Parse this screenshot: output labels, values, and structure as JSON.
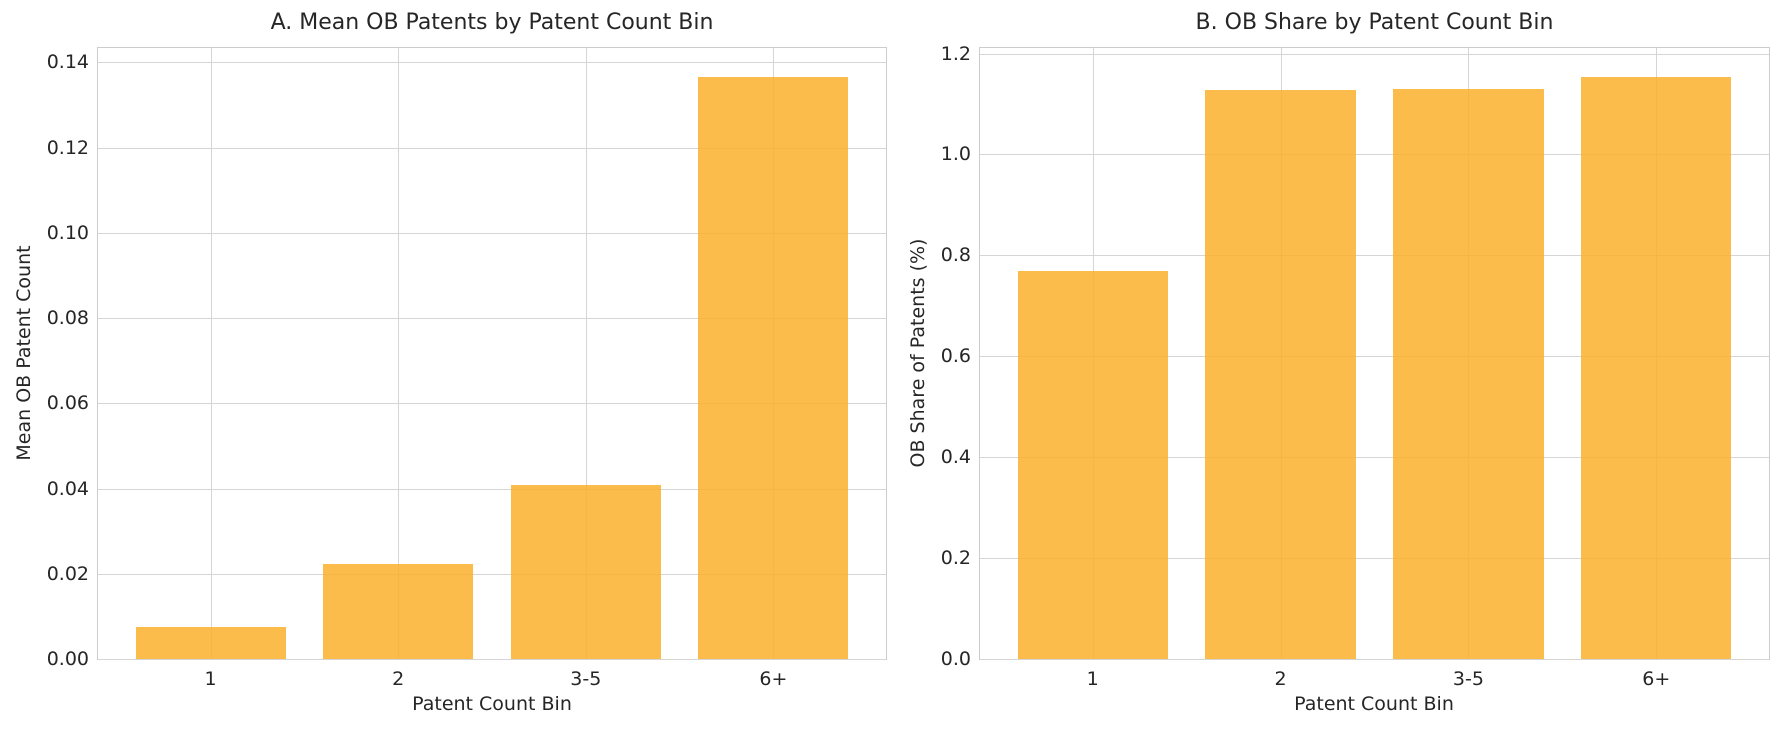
{
  "chart_data": [
    {
      "type": "bar",
      "title": "A. Mean OB Patents by Patent Count Bin",
      "xlabel": "Patent Count Bin",
      "ylabel": "Mean OB Patent Count",
      "categories": [
        "1",
        "2",
        "3-5",
        "6+"
      ],
      "values": [
        0.0075,
        0.0224,
        0.0408,
        0.1366
      ],
      "ylim": [
        0,
        0.1434
      ],
      "yticks": [
        "0.00",
        "0.02",
        "0.04",
        "0.06",
        "0.08",
        "0.10",
        "0.12",
        "0.14"
      ],
      "ytick_values": [
        0,
        0.02,
        0.04,
        0.06,
        0.08,
        0.1,
        0.12,
        0.14
      ],
      "grid": true,
      "color": "#fbb02d"
    },
    {
      "type": "bar",
      "title": "B. OB Share by Patent Count Bin",
      "xlabel": "Patent Count Bin",
      "ylabel": "OB Share of Patents (%)",
      "categories": [
        "1",
        "2",
        "3-5",
        "6+"
      ],
      "values": [
        0.77,
        1.127,
        1.129,
        1.153
      ],
      "ylim": [
        0,
        1.211
      ],
      "yticks": [
        "0.0",
        "0.2",
        "0.4",
        "0.6",
        "0.8",
        "1.0",
        "1.2"
      ],
      "ytick_values": [
        0,
        0.2,
        0.4,
        0.6,
        0.8,
        1.0,
        1.2
      ],
      "grid": true,
      "color": "#fbb02d"
    }
  ]
}
